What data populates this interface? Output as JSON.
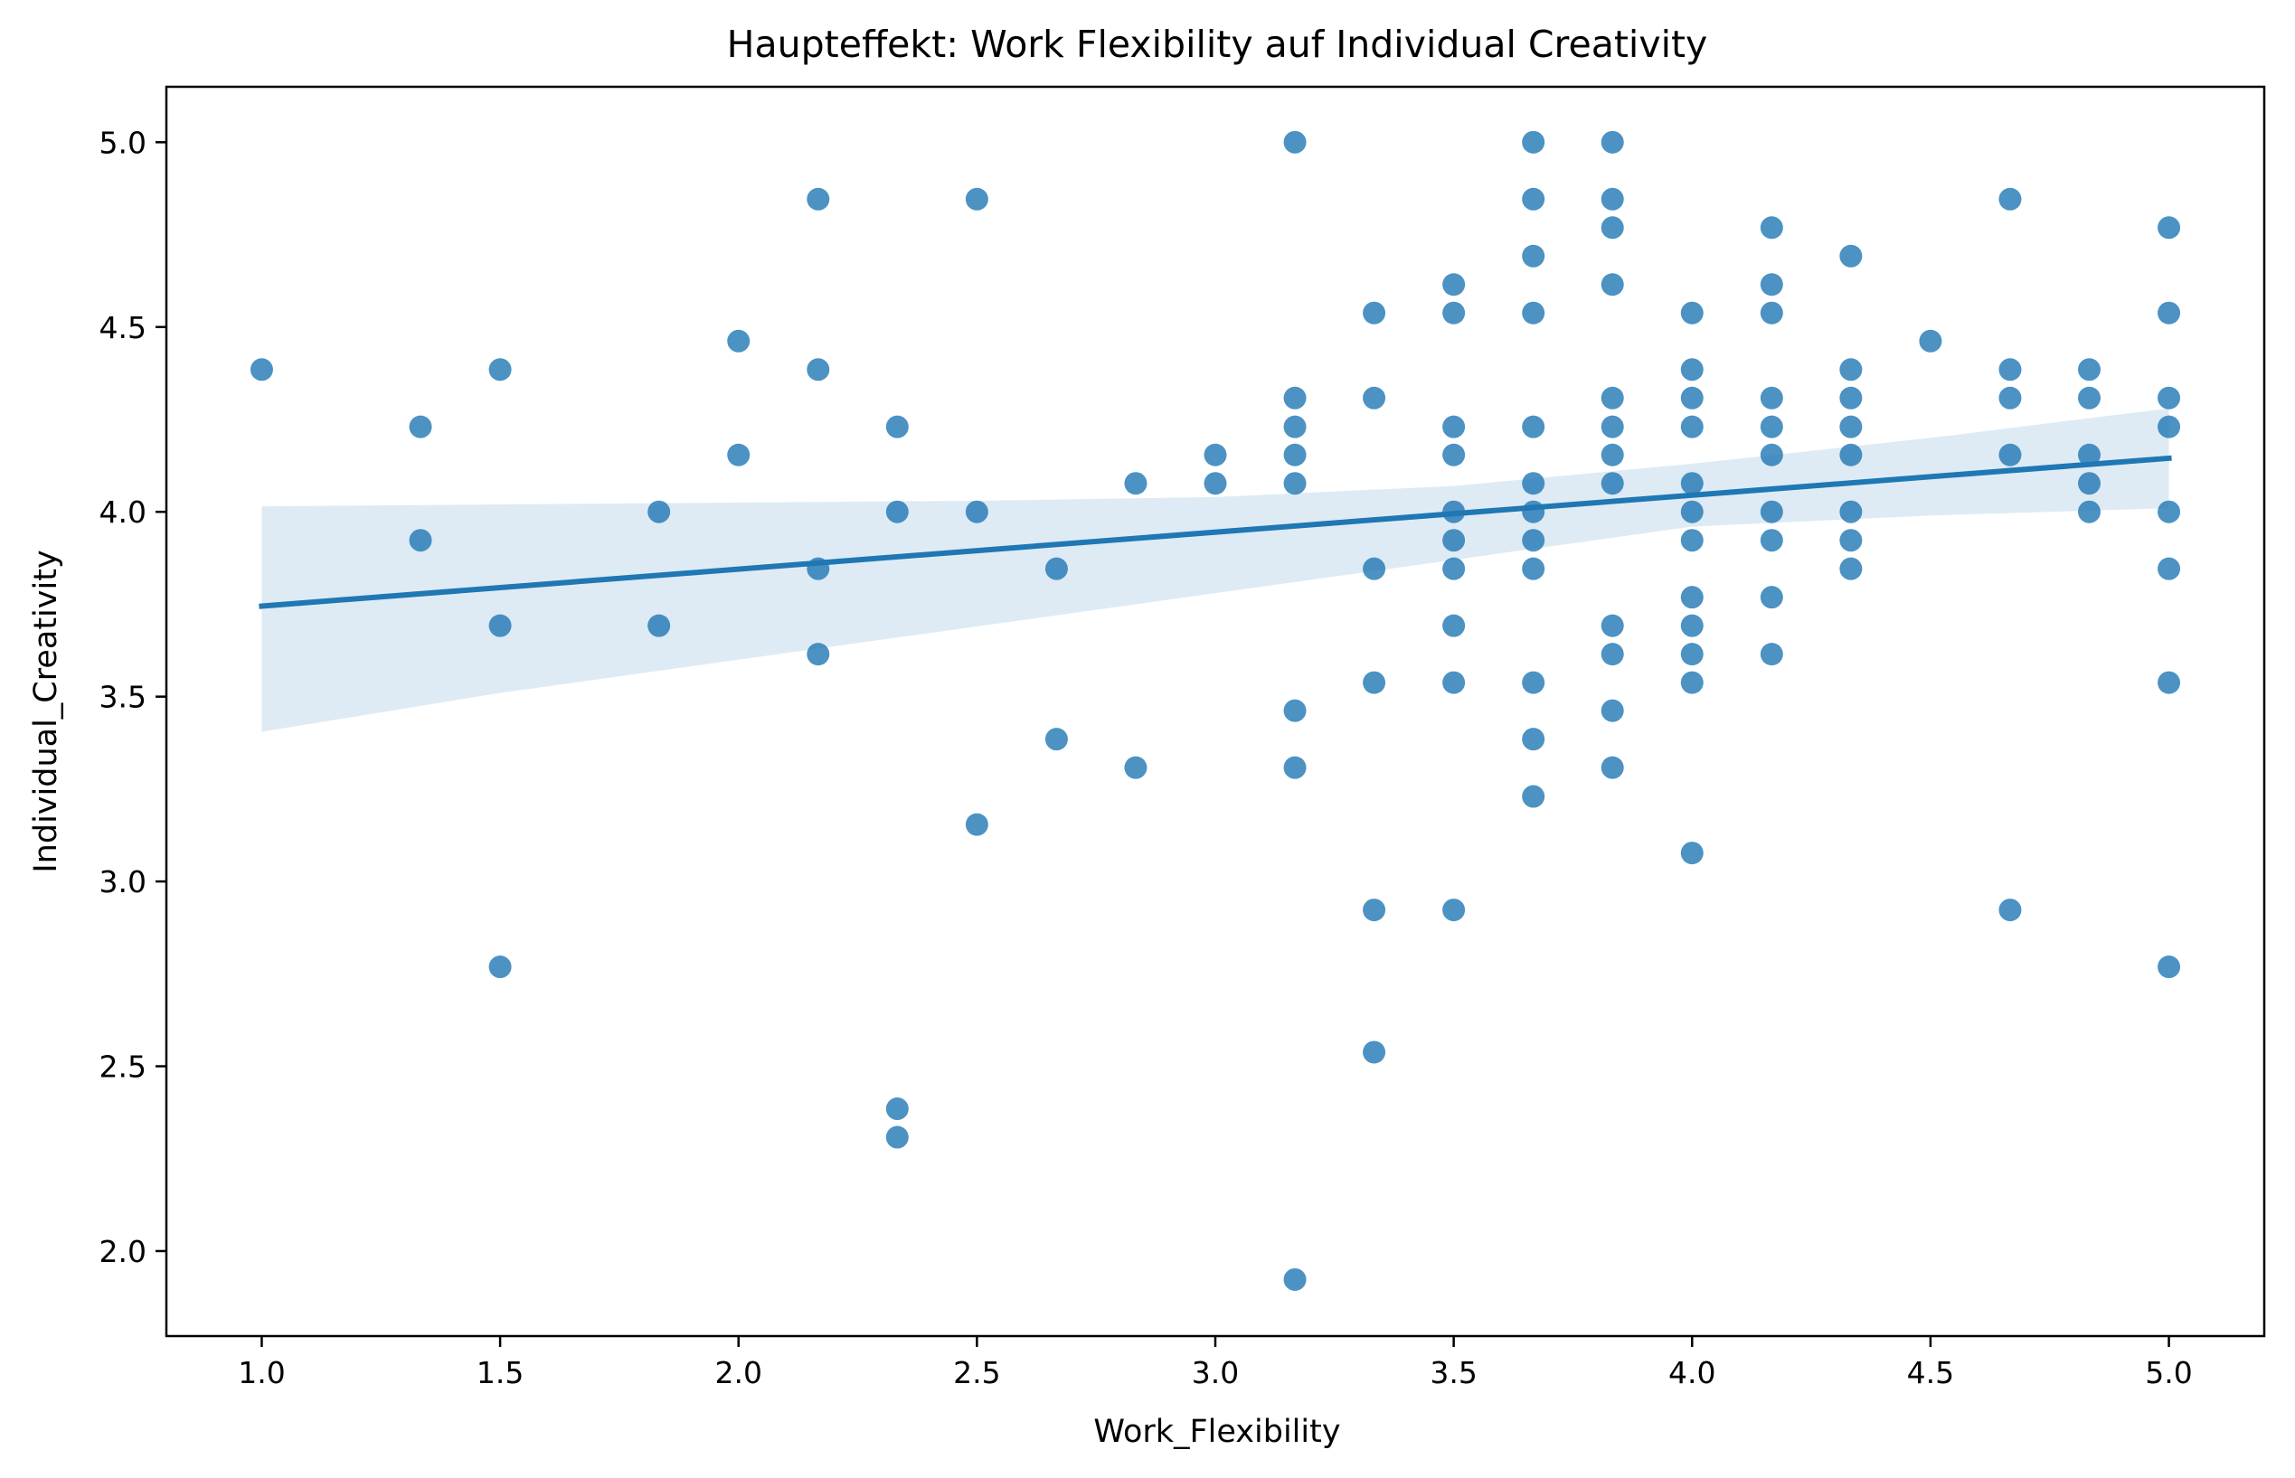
{
  "chart_data": {
    "type": "scatter",
    "title": "Haupteffekt: Work Flexibility auf Individual Creativity",
    "xlabel": "Work_Flexibility",
    "ylabel": "Individual_Creativity",
    "xlim": [
      0.8,
      5.2
    ],
    "ylim": [
      1.77,
      5.15
    ],
    "xticks": [
      1.0,
      1.5,
      2.0,
      2.5,
      3.0,
      3.5,
      4.0,
      4.5,
      5.0
    ],
    "xtick_labels": [
      "1.0",
      "1.5",
      "2.0",
      "2.5",
      "3.0",
      "3.5",
      "4.0",
      "4.5",
      "5.0"
    ],
    "yticks": [
      2.0,
      2.5,
      3.0,
      3.5,
      4.0,
      4.5,
      5.0
    ],
    "ytick_labels": [
      "2.0",
      "2.5",
      "3.0",
      "3.5",
      "4.0",
      "4.5",
      "5.0"
    ],
    "grid": false,
    "point_color": "#1f77b4",
    "regression": {
      "x": [
        1.0,
        5.0
      ],
      "y": [
        3.745,
        4.145
      ],
      "ci_lower": [
        [
          1.0,
          3.405
        ],
        [
          1.5,
          3.51
        ],
        [
          2.0,
          3.6
        ],
        [
          2.5,
          3.69
        ],
        [
          3.0,
          3.78
        ],
        [
          3.5,
          3.87
        ],
        [
          4.0,
          3.96
        ],
        [
          4.5,
          3.99
        ],
        [
          5.0,
          4.01
        ]
      ],
      "ci_upper": [
        [
          1.0,
          4.015
        ],
        [
          1.5,
          4.02
        ],
        [
          2.0,
          4.025
        ],
        [
          2.5,
          4.03
        ],
        [
          3.0,
          4.04
        ],
        [
          3.5,
          4.07
        ],
        [
          4.0,
          4.13
        ],
        [
          4.5,
          4.2
        ],
        [
          5.0,
          4.28
        ]
      ],
      "color": "#1f77b4",
      "ci_color": "#1f77b4"
    },
    "points": [
      [
        1.0,
        4.385
      ],
      [
        1.333,
        4.23
      ],
      [
        1.333,
        3.923
      ],
      [
        1.5,
        4.385
      ],
      [
        1.5,
        3.692
      ],
      [
        1.5,
        2.769
      ],
      [
        1.833,
        4.0
      ],
      [
        1.833,
        3.692
      ],
      [
        2.0,
        4.462
      ],
      [
        2.0,
        4.154
      ],
      [
        2.167,
        4.846
      ],
      [
        2.167,
        4.385
      ],
      [
        2.167,
        3.846
      ],
      [
        2.167,
        3.615
      ],
      [
        2.333,
        4.23
      ],
      [
        2.333,
        4.0
      ],
      [
        2.333,
        2.385
      ],
      [
        2.333,
        2.308
      ],
      [
        2.5,
        4.846
      ],
      [
        2.5,
        4.0
      ],
      [
        2.5,
        3.154
      ],
      [
        2.667,
        3.846
      ],
      [
        2.667,
        3.385
      ],
      [
        2.833,
        4.077
      ],
      [
        2.833,
        3.308
      ],
      [
        3.0,
        4.154
      ],
      [
        3.0,
        4.077
      ],
      [
        3.167,
        5.0
      ],
      [
        3.167,
        4.308
      ],
      [
        3.167,
        4.23
      ],
      [
        3.167,
        4.154
      ],
      [
        3.167,
        4.077
      ],
      [
        3.167,
        3.462
      ],
      [
        3.167,
        3.308
      ],
      [
        3.167,
        1.923
      ],
      [
        3.333,
        4.538
      ],
      [
        3.333,
        4.308
      ],
      [
        3.333,
        3.846
      ],
      [
        3.333,
        3.538
      ],
      [
        3.333,
        2.923
      ],
      [
        3.333,
        2.538
      ],
      [
        3.5,
        4.615
      ],
      [
        3.5,
        4.538
      ],
      [
        3.5,
        4.23
      ],
      [
        3.5,
        4.154
      ],
      [
        3.5,
        4.0
      ],
      [
        3.5,
        3.923
      ],
      [
        3.5,
        3.846
      ],
      [
        3.5,
        3.692
      ],
      [
        3.5,
        3.538
      ],
      [
        3.5,
        2.923
      ],
      [
        3.667,
        5.0
      ],
      [
        3.667,
        4.846
      ],
      [
        3.667,
        4.692
      ],
      [
        3.667,
        4.538
      ],
      [
        3.667,
        4.23
      ],
      [
        3.667,
        4.077
      ],
      [
        3.667,
        4.0
      ],
      [
        3.667,
        3.923
      ],
      [
        3.667,
        3.846
      ],
      [
        3.667,
        3.538
      ],
      [
        3.667,
        3.385
      ],
      [
        3.667,
        3.23
      ],
      [
        3.833,
        5.0
      ],
      [
        3.833,
        4.846
      ],
      [
        3.833,
        4.769
      ],
      [
        3.833,
        4.615
      ],
      [
        3.833,
        4.308
      ],
      [
        3.833,
        4.23
      ],
      [
        3.833,
        4.154
      ],
      [
        3.833,
        4.077
      ],
      [
        3.833,
        3.692
      ],
      [
        3.833,
        3.615
      ],
      [
        3.833,
        3.462
      ],
      [
        3.833,
        3.308
      ],
      [
        4.0,
        4.538
      ],
      [
        4.0,
        4.385
      ],
      [
        4.0,
        4.308
      ],
      [
        4.0,
        4.23
      ],
      [
        4.0,
        4.077
      ],
      [
        4.0,
        4.0
      ],
      [
        4.0,
        3.923
      ],
      [
        4.0,
        3.769
      ],
      [
        4.0,
        3.692
      ],
      [
        4.0,
        3.615
      ],
      [
        4.0,
        3.538
      ],
      [
        4.0,
        3.077
      ],
      [
        4.167,
        4.769
      ],
      [
        4.167,
        4.615
      ],
      [
        4.167,
        4.538
      ],
      [
        4.167,
        4.308
      ],
      [
        4.167,
        4.23
      ],
      [
        4.167,
        4.154
      ],
      [
        4.167,
        4.0
      ],
      [
        4.167,
        3.923
      ],
      [
        4.167,
        3.769
      ],
      [
        4.167,
        3.615
      ],
      [
        4.333,
        4.692
      ],
      [
        4.333,
        4.385
      ],
      [
        4.333,
        4.308
      ],
      [
        4.333,
        4.23
      ],
      [
        4.333,
        4.154
      ],
      [
        4.333,
        4.0
      ],
      [
        4.333,
        3.923
      ],
      [
        4.333,
        3.846
      ],
      [
        4.5,
        4.462
      ],
      [
        4.667,
        4.846
      ],
      [
        4.667,
        4.385
      ],
      [
        4.667,
        4.308
      ],
      [
        4.667,
        4.154
      ],
      [
        4.667,
        2.923
      ],
      [
        4.833,
        4.385
      ],
      [
        4.833,
        4.308
      ],
      [
        4.833,
        4.154
      ],
      [
        4.833,
        4.077
      ],
      [
        4.833,
        4.0
      ],
      [
        5.0,
        4.769
      ],
      [
        5.0,
        4.538
      ],
      [
        5.0,
        4.308
      ],
      [
        5.0,
        4.23
      ],
      [
        5.0,
        4.0
      ],
      [
        5.0,
        3.846
      ],
      [
        5.0,
        3.538
      ],
      [
        5.0,
        2.769
      ]
    ]
  }
}
